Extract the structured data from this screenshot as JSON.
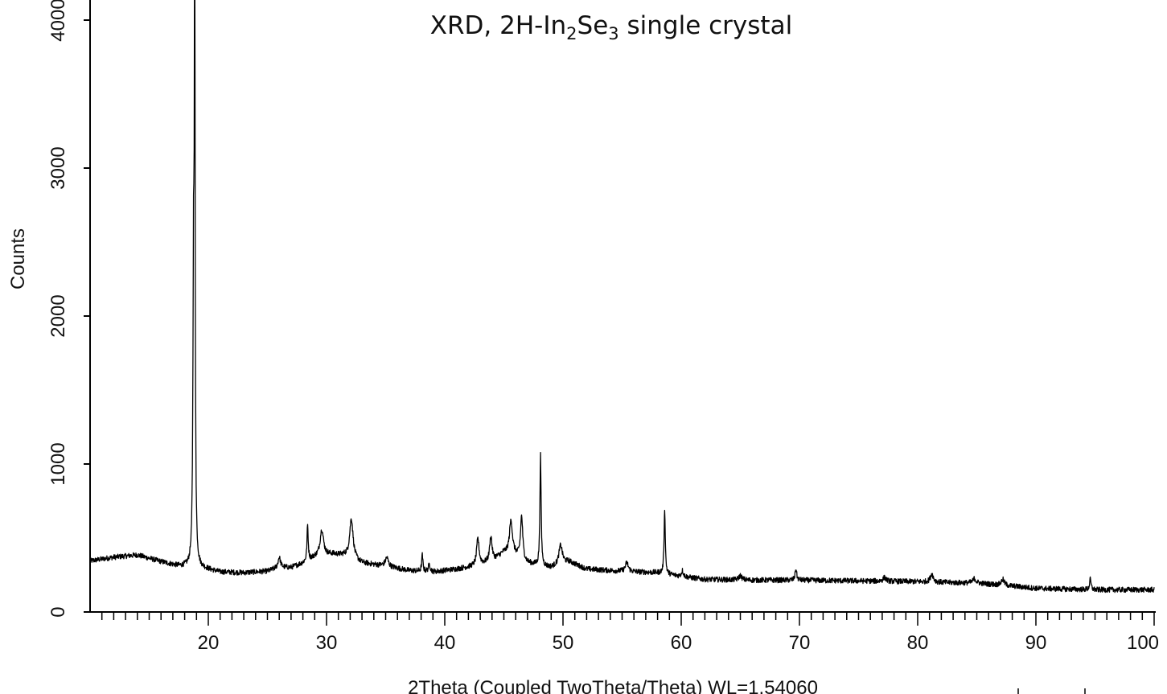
{
  "chart_data": {
    "type": "line",
    "title": {
      "prefix": "XRD, 2H-In",
      "sub1": "2",
      "mid": "Se",
      "sub2": "3",
      "suffix": " single crystal"
    },
    "xlabel": "2Theta (Coupled TwoTheta/Theta) WL=1.54060",
    "ylabel": "Counts",
    "xlim": [
      10,
      100
    ],
    "ylim": [
      0,
      4000
    ],
    "x_major_ticks": [
      20,
      30,
      40,
      50,
      60,
      70,
      80,
      90,
      100
    ],
    "x_minor_step": 1,
    "y_major_ticks": [
      0,
      1000,
      2000,
      3000,
      4000
    ],
    "grid": false,
    "legend": "none",
    "line_color": "#000000",
    "baseline": [
      [
        10,
        345
      ],
      [
        12,
        370
      ],
      [
        14,
        385
      ],
      [
        16,
        340
      ],
      [
        17.5,
        310
      ],
      [
        18.3,
        305
      ],
      [
        19.8,
        290
      ],
      [
        21,
        270
      ],
      [
        23,
        265
      ],
      [
        25,
        275
      ],
      [
        26,
        300
      ],
      [
        27,
        300
      ],
      [
        28,
        330
      ],
      [
        29,
        370
      ],
      [
        30.5,
        390
      ],
      [
        31.5,
        380
      ],
      [
        33,
        330
      ],
      [
        35,
        310
      ],
      [
        37,
        280
      ],
      [
        39,
        270
      ],
      [
        41,
        290
      ],
      [
        42.5,
        310
      ],
      [
        44,
        340
      ],
      [
        45,
        400
      ],
      [
        46,
        380
      ],
      [
        47,
        330
      ],
      [
        48,
        310
      ],
      [
        49,
        300
      ],
      [
        50.5,
        340
      ],
      [
        52,
        290
      ],
      [
        55,
        275
      ],
      [
        58,
        265
      ],
      [
        60,
        240
      ],
      [
        62,
        220
      ],
      [
        66,
        215
      ],
      [
        70,
        215
      ],
      [
        75,
        210
      ],
      [
        80,
        205
      ],
      [
        82,
        200
      ],
      [
        85,
        195
      ],
      [
        88,
        175
      ],
      [
        90,
        160
      ],
      [
        95,
        150
      ],
      [
        100,
        150
      ]
    ],
    "peaks": [
      {
        "x": 18.85,
        "y": 3920,
        "w": 0.09
      },
      {
        "x": 18.75,
        "y": 1850,
        "w": 0.12
      },
      {
        "x": 26.0,
        "y": 70,
        "w": 0.25
      },
      {
        "x": 28.4,
        "y": 240,
        "w": 0.12
      },
      {
        "x": 29.6,
        "y": 180,
        "w": 0.35
      },
      {
        "x": 32.1,
        "y": 270,
        "w": 0.35
      },
      {
        "x": 35.1,
        "y": 60,
        "w": 0.3
      },
      {
        "x": 38.1,
        "y": 110,
        "w": 0.12
      },
      {
        "x": 38.7,
        "y": 50,
        "w": 0.2
      },
      {
        "x": 42.8,
        "y": 180,
        "w": 0.25
      },
      {
        "x": 43.9,
        "y": 170,
        "w": 0.25
      },
      {
        "x": 45.6,
        "y": 230,
        "w": 0.3
      },
      {
        "x": 46.5,
        "y": 290,
        "w": 0.22
      },
      {
        "x": 48.1,
        "y": 750,
        "w": 0.12
      },
      {
        "x": 49.8,
        "y": 130,
        "w": 0.35
      },
      {
        "x": 55.4,
        "y": 60,
        "w": 0.3
      },
      {
        "x": 58.6,
        "y": 440,
        "w": 0.12
      },
      {
        "x": 60.1,
        "y": 40,
        "w": 0.2
      },
      {
        "x": 65.0,
        "y": 30,
        "w": 0.3
      },
      {
        "x": 69.7,
        "y": 80,
        "w": 0.15
      },
      {
        "x": 77.2,
        "y": 25,
        "w": 0.3
      },
      {
        "x": 81.2,
        "y": 55,
        "w": 0.3
      },
      {
        "x": 84.8,
        "y": 30,
        "w": 0.3
      },
      {
        "x": 87.2,
        "y": 40,
        "w": 0.3
      },
      {
        "x": 94.6,
        "y": 70,
        "w": 0.15
      }
    ]
  }
}
